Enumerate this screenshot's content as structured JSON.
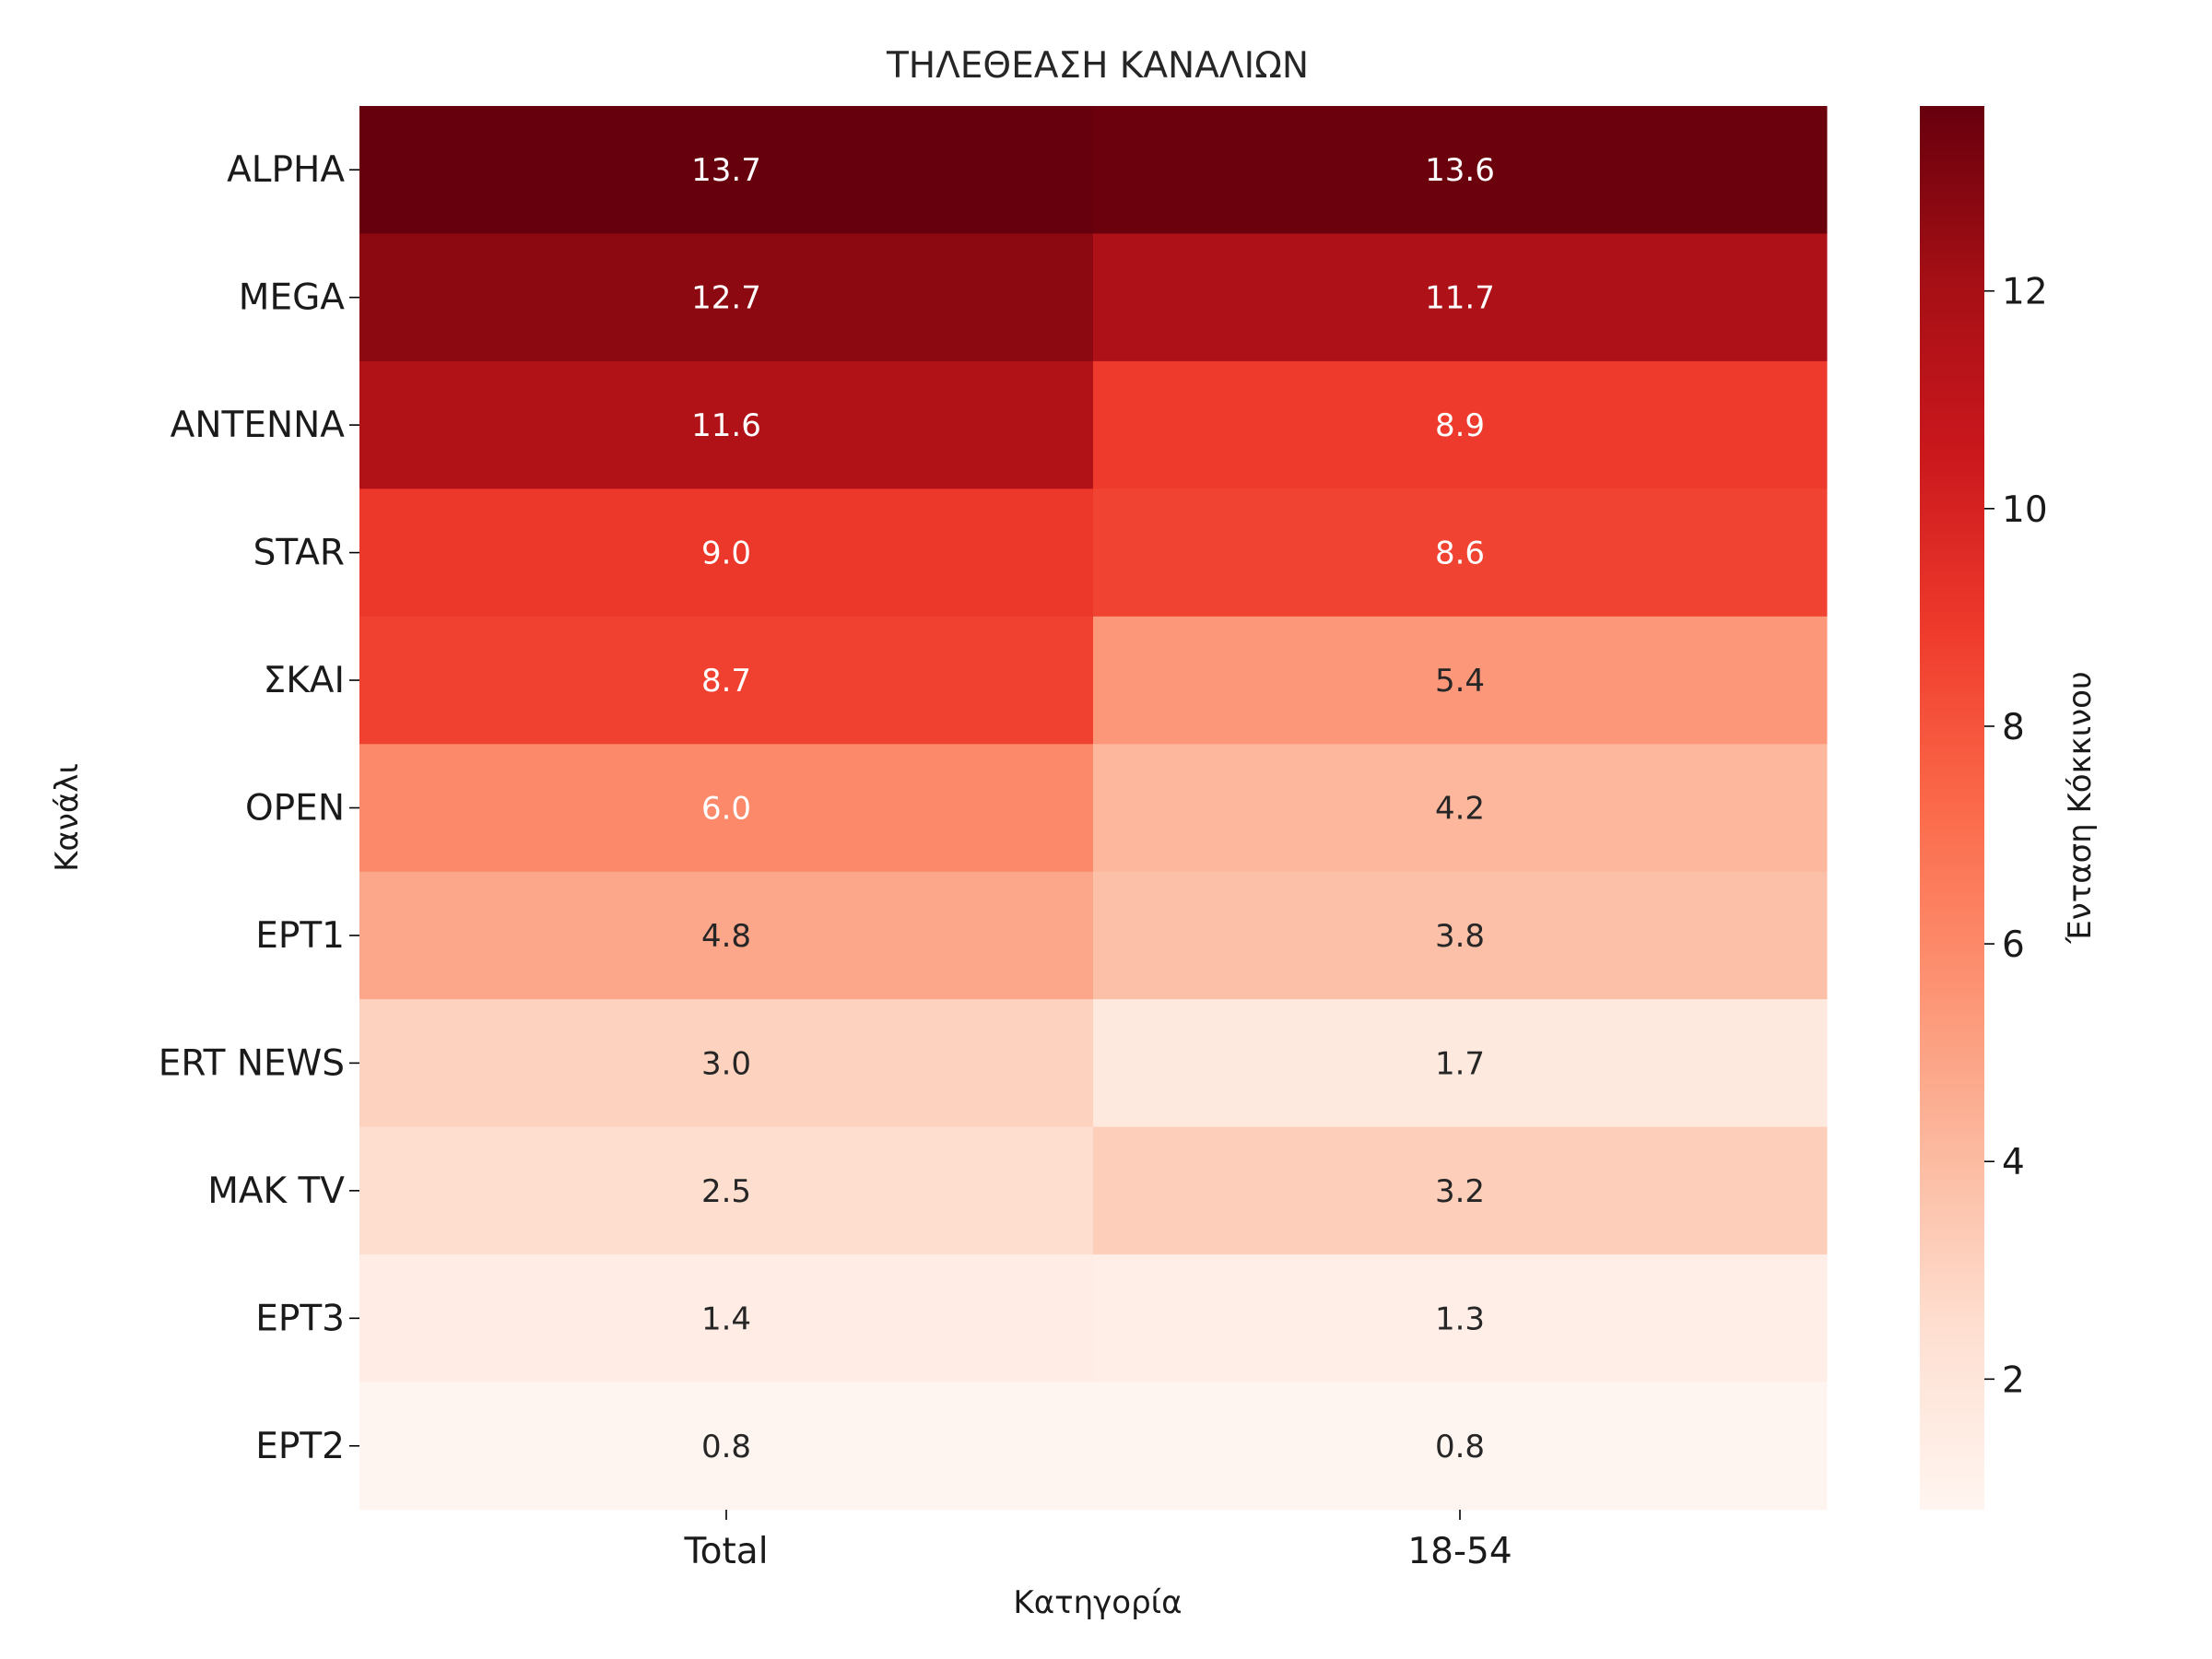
{
  "chart_data": {
    "type": "heatmap",
    "title": "ΤΗΛΕΘΕΑΣΗ ΚΑΝΑΛΙΩΝ",
    "xlabel": "Κατηγορία",
    "ylabel": "Κανάλι",
    "x_categories": [
      "Total",
      "18-54"
    ],
    "y_categories": [
      "ALPHA",
      "MEGA",
      "ANTENNA",
      "STAR",
      "ΣΚΑΙ",
      "OPEN",
      "ΕΡΤ1",
      "ERT NEWS",
      "MAK TV",
      "ΕΡΤ3",
      "ΕΡΤ2"
    ],
    "values": [
      [
        13.7,
        13.6
      ],
      [
        12.7,
        11.7
      ],
      [
        11.6,
        8.9
      ],
      [
        9.0,
        8.6
      ],
      [
        8.7,
        5.4
      ],
      [
        6.0,
        4.2
      ],
      [
        4.8,
        3.8
      ],
      [
        3.0,
        1.7
      ],
      [
        2.5,
        3.2
      ],
      [
        1.4,
        1.3
      ],
      [
        0.8,
        0.8
      ]
    ],
    "colorbar": {
      "label": "Ένταση Κόκκινου",
      "colormap": "Reds",
      "vmin": 0.8,
      "vmax": 13.7,
      "ticks": [
        "2",
        "4",
        "6",
        "8",
        "10",
        "12"
      ]
    }
  }
}
